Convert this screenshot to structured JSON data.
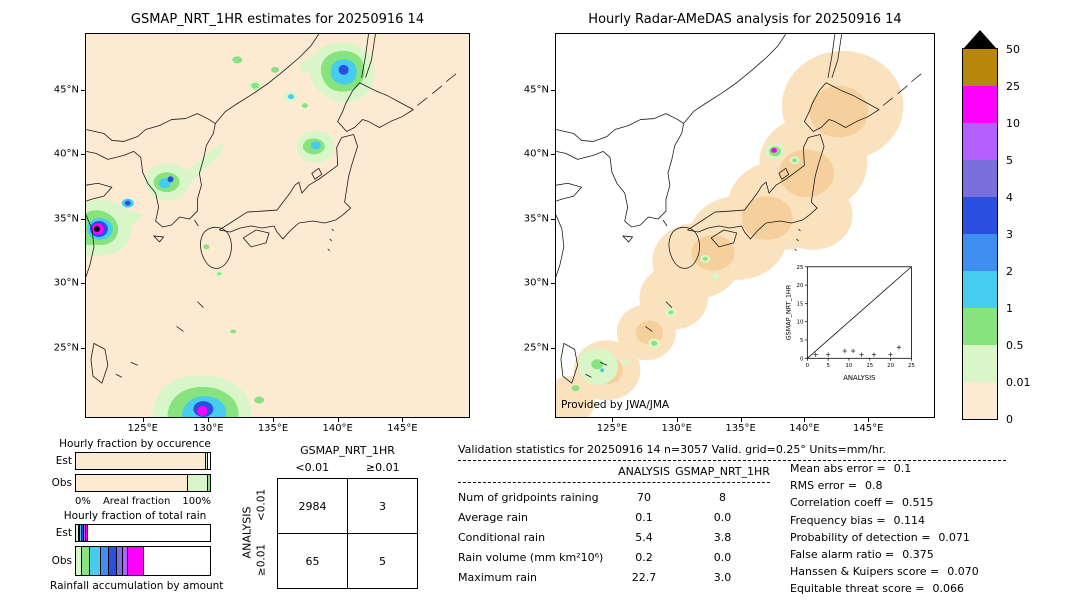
{
  "left_map": {
    "title": "GSMAP_NRT_1HR estimates for 20250916 14",
    "x_ticks": [
      "125°E",
      "130°E",
      "135°E",
      "140°E",
      "145°E"
    ],
    "y_ticks": [
      "45°N",
      "40°N",
      "35°N",
      "30°N",
      "25°N"
    ]
  },
  "right_map": {
    "title": "Hourly Radar-AMeDAS analysis for 20250916 14",
    "x_ticks": [
      "125°E",
      "130°E",
      "135°E",
      "140°E",
      "145°E"
    ],
    "y_ticks": [
      "45°N",
      "40°N",
      "35°N",
      "30°N",
      "25°N"
    ],
    "credit": "Provided by JWA/JMA",
    "inset": {
      "xlabel": "ANALYSIS",
      "ylabel": "GSMAP_NRT_1HR",
      "x_ticks": [
        "0",
        "5",
        "10",
        "15",
        "20",
        "25"
      ],
      "y_ticks": [
        "0",
        "5",
        "10",
        "15",
        "20",
        "25"
      ],
      "points": [
        [
          2,
          1
        ],
        [
          5,
          1
        ],
        [
          9,
          2
        ],
        [
          11,
          2
        ],
        [
          13,
          1
        ],
        [
          16,
          1
        ],
        [
          20,
          1
        ],
        [
          22,
          3
        ]
      ]
    }
  },
  "colorbar": {
    "labels": [
      "50",
      "25",
      "10",
      "5",
      "4",
      "3",
      "2",
      "1",
      "0.5",
      "0.01",
      "0"
    ],
    "segment_colors": [
      "#b8860b",
      "#ff00ff",
      "#b45fff",
      "#7a6fdc",
      "#2a4fe0",
      "#3f8ef2",
      "#45ccee",
      "#86e37d",
      "#d9f6c8",
      "#fdead2"
    ],
    "arrow_color": "#000000"
  },
  "occurrence_chart": {
    "title": "Hourly fraction by occurence",
    "xlabel": "Areal fraction",
    "x_min_label": "0%",
    "x_max_label": "100%",
    "rows": [
      {
        "label": "Est",
        "segments": [
          {
            "color": "#fdead2",
            "pct": 96.5
          },
          {
            "color": "#d9f6c8",
            "pct": 1.5
          },
          {
            "color": "#ffffff",
            "pct": 2
          }
        ]
      },
      {
        "label": "Obs",
        "segments": [
          {
            "color": "#fdead2",
            "pct": 83
          },
          {
            "color": "#d9f6c8",
            "pct": 14.5
          },
          {
            "color": "#86e37d",
            "pct": 2.5
          }
        ]
      }
    ]
  },
  "totalrain_chart": {
    "title": "Hourly fraction of total rain",
    "xlabel": "Rainfall accumulation by amount",
    "rows": [
      {
        "label": "Est",
        "segments": [
          {
            "color": "#d9f6c8",
            "pct": 1.2
          },
          {
            "color": "#86e37d",
            "pct": 1.3
          },
          {
            "color": "#45ccee",
            "pct": 1.5
          },
          {
            "color": "#2a4fe0",
            "pct": 1.5
          },
          {
            "color": "#b45fff",
            "pct": 1
          },
          {
            "color": "#ff00ff",
            "pct": 1.5
          },
          {
            "color": "#ffffff",
            "pct": 92
          }
        ]
      },
      {
        "label": "Obs",
        "segments": [
          {
            "color": "#d9f6c8",
            "pct": 4
          },
          {
            "color": "#86e37d",
            "pct": 6
          },
          {
            "color": "#45ccee",
            "pct": 8
          },
          {
            "color": "#3f8ef2",
            "pct": 6
          },
          {
            "color": "#2a4fe0",
            "pct": 6
          },
          {
            "color": "#7a6fdc",
            "pct": 4
          },
          {
            "color": "#b45fff",
            "pct": 4
          },
          {
            "color": "#ff00ff",
            "pct": 12
          },
          {
            "color": "#ffffff",
            "pct": 50
          }
        ]
      }
    ]
  },
  "contingency": {
    "col_group": "GSMAP_NRT_1HR",
    "row_group": "ANALYSIS",
    "col_headers": [
      "<0.01",
      "≥0.01"
    ],
    "row_headers": [
      "<0.01",
      "≥0.01"
    ],
    "values": [
      [
        "2984",
        "3"
      ],
      [
        "65",
        "5"
      ]
    ]
  },
  "validation": {
    "title": "Validation statistics for 20250916 14  n=3057 Valid. grid=0.25° Units=mm/hr.",
    "col_headers": [
      "ANALYSIS",
      "GSMAP_NRT_1HR"
    ],
    "rows": [
      {
        "label": "Num of gridpoints raining",
        "analysis": "70",
        "gsmap": "8"
      },
      {
        "label": "Average rain",
        "analysis": "0.1",
        "gsmap": "0.0"
      },
      {
        "label": "Conditional rain",
        "analysis": "5.4",
        "gsmap": "3.8"
      },
      {
        "label": "Rain volume (mm km²10⁶)",
        "analysis": "0.2",
        "gsmap": "0.0"
      },
      {
        "label": "Maximum rain",
        "analysis": "22.7",
        "gsmap": "3.0"
      }
    ],
    "stats": [
      {
        "label": "Mean abs error",
        "value": "0.1"
      },
      {
        "label": "RMS error",
        "value": "0.8"
      },
      {
        "label": "Correlation coeff",
        "value": "0.515"
      },
      {
        "label": "Frequency bias",
        "value": "0.114"
      },
      {
        "label": "Probability of detection",
        "value": "0.071"
      },
      {
        "label": "False alarm ratio",
        "value": "0.375"
      },
      {
        "label": "Hanssen & Kuipers score",
        "value": "0.070"
      },
      {
        "label": "Equitable threat score",
        "value": "0.066"
      }
    ]
  },
  "chart_data": [
    {
      "type": "heatmap",
      "title": "GSMAP_NRT_1HR estimates for 20250916 14",
      "x_ticks": [
        "125°E",
        "130°E",
        "135°E",
        "140°E",
        "145°E"
      ],
      "y_ticks": [
        "25°N",
        "30°N",
        "35°N",
        "40°N",
        "45°N"
      ],
      "units": "mm/hr",
      "levels": [
        0,
        0.01,
        0.5,
        1,
        2,
        3,
        4,
        5,
        10,
        25,
        50
      ],
      "note": "Satellite precipitation map over Japan/Korea; strongest cell (>25 mm/hr, black/magenta core) near 33.5N 121.5E, large rain areas near 46N 139E and near 21N 133E, lighter cells near 37N 126E and 38.5N 138E"
    },
    {
      "type": "heatmap",
      "title": "Hourly Radar-AMeDAS analysis for 20250916 14",
      "x_ticks": [
        "125°E",
        "130°E",
        "135°E",
        "140°E",
        "145°E"
      ],
      "y_ticks": [
        "25°N",
        "30°N",
        "35°N",
        "40°N",
        "45°N"
      ],
      "units": "mm/hr",
      "levels": [
        0,
        0.01,
        0.5,
        1,
        2,
        3,
        4,
        5,
        10,
        25,
        50
      ],
      "credit": "Provided by JWA/JMA",
      "note": "Radar coverage band shaded 0 mm/hr along the archipelago with scattered light-rain spots; one >10 mm/hr cell near 40N 139.5E and a cluster near Okinawa"
    },
    {
      "type": "scatter",
      "title": "GSMAP_NRT_1HR vs ANALYSIS",
      "xlabel": "ANALYSIS",
      "ylabel": "GSMAP_NRT_1HR",
      "xlim": [
        0,
        25
      ],
      "ylim": [
        0,
        25
      ],
      "reference_line": "y=x",
      "points": [
        [
          2,
          1
        ],
        [
          5,
          1
        ],
        [
          9,
          2
        ],
        [
          11,
          2
        ],
        [
          13,
          1
        ],
        [
          16,
          1
        ],
        [
          20,
          1
        ],
        [
          22,
          3
        ]
      ]
    },
    {
      "type": "bar",
      "title": "Hourly fraction by occurence",
      "categories": [
        "Est",
        "Obs"
      ],
      "xlabel": "Areal fraction",
      "xlim_labels": [
        "0%",
        "100%"
      ],
      "series": [
        {
          "name": "Est",
          "no_rain_pct": 96.5,
          "light_rain_pct": 3.5
        },
        {
          "name": "Obs",
          "no_rain_pct": 83,
          "light_rain_pct": 17
        }
      ]
    },
    {
      "type": "bar",
      "title": "Hourly fraction of total rain",
      "categories": [
        "Est",
        "Obs"
      ],
      "xlabel": "Rainfall accumulation by amount",
      "series": [
        {
          "name": "Est",
          "colored_fraction_pct": 8
        },
        {
          "name": "Obs",
          "colored_fraction_pct": 50
        }
      ]
    },
    {
      "type": "table",
      "title": "Contingency table (ANALYSIS rows vs GSMAP_NRT_1HR columns)",
      "columns": [
        "<0.01",
        "≥0.01"
      ],
      "rows": [
        "<0.01",
        "≥0.01"
      ],
      "values": [
        [
          2984,
          3
        ],
        [
          65,
          5
        ]
      ]
    },
    {
      "type": "table",
      "title": "Validation statistics for 20250916 14  n=3057 Valid. grid=0.25° Units=mm/hr.",
      "columns": [
        "ANALYSIS",
        "GSMAP_NRT_1HR"
      ],
      "rows": [
        [
          "Num of gridpoints raining",
          70,
          8
        ],
        [
          "Average rain",
          0.1,
          0.0
        ],
        [
          "Conditional rain",
          5.4,
          3.8
        ],
        [
          "Rain volume (mm km²10⁶)",
          0.2,
          0.0
        ],
        [
          "Maximum rain",
          22.7,
          3.0
        ]
      ],
      "scores": {
        "Mean abs error": 0.1,
        "RMS error": 0.8,
        "Correlation coeff": 0.515,
        "Frequency bias": 0.114,
        "Probability of detection": 0.071,
        "False alarm ratio": 0.375,
        "Hanssen & Kuipers score": 0.07,
        "Equitable threat score": 0.066
      }
    }
  ]
}
